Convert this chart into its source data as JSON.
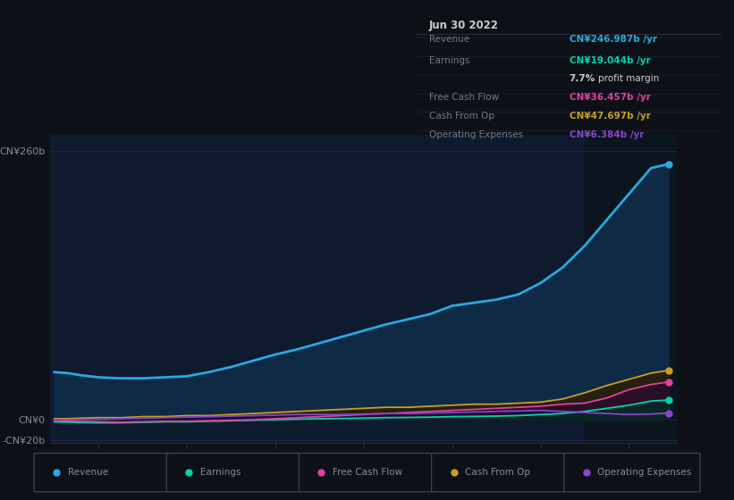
{
  "background_color": "#0d1117",
  "plot_bg_color": "#0e1a2e",
  "shaded_region_color": "#162236",
  "grid_color": "#1e2d45",
  "text_color": "#888899",
  "title_color": "#ffffff",
  "years": [
    2015.5,
    2015.65,
    2015.8,
    2016.0,
    2016.25,
    2016.5,
    2016.75,
    2017.0,
    2017.25,
    2017.5,
    2017.75,
    2018.0,
    2018.25,
    2018.5,
    2018.75,
    2019.0,
    2019.25,
    2019.5,
    2019.75,
    2020.0,
    2020.25,
    2020.5,
    2020.75,
    2021.0,
    2021.25,
    2021.5,
    2021.75,
    2022.0,
    2022.25,
    2022.45
  ],
  "revenue": [
    46,
    45,
    43,
    41,
    40,
    40,
    41,
    42,
    46,
    51,
    57,
    63,
    68,
    74,
    80,
    86,
    92,
    97,
    102,
    110,
    113,
    116,
    121,
    132,
    147,
    168,
    193,
    218,
    243,
    247
  ],
  "earnings": [
    -2,
    -2.3,
    -2.8,
    -3,
    -3,
    -2.5,
    -2,
    -2,
    -1.5,
    -1,
    -0.5,
    0,
    0.5,
    1,
    1.2,
    1.5,
    2,
    2.2,
    2.5,
    3,
    3.2,
    3.5,
    4,
    5,
    6,
    8,
    11,
    14,
    18,
    19
  ],
  "free_cash_flow": [
    -0.5,
    -1,
    -1.5,
    -2,
    -2.5,
    -2,
    -1.5,
    -1.5,
    -1,
    -0.5,
    0,
    1,
    2,
    3,
    4,
    5,
    6,
    7,
    8,
    9,
    10,
    11,
    12,
    13,
    15,
    16,
    21,
    29,
    34,
    36.5
  ],
  "cash_from_op": [
    1,
    1,
    1.5,
    2,
    2,
    3,
    3,
    4,
    4,
    5,
    6,
    7,
    8,
    9,
    10,
    11,
    12,
    12,
    13,
    14,
    15,
    15,
    16,
    17,
    20,
    26,
    33,
    39,
    45,
    47.7
  ],
  "operating_expenses": [
    0,
    0,
    0.3,
    0.5,
    1,
    1.5,
    2,
    2.5,
    3,
    3.5,
    4,
    4.5,
    5,
    5,
    5,
    5.5,
    6,
    6,
    6.5,
    7,
    7.5,
    8,
    8.5,
    9,
    8,
    7,
    6,
    5,
    5.5,
    6.4
  ],
  "revenue_color": "#29a8e0",
  "earnings_color": "#00d4aa",
  "free_cash_flow_color": "#e040a0",
  "cash_from_op_color": "#c8a020",
  "operating_expenses_color": "#8844cc",
  "revenue_fill": "#0e2a45",
  "earnings_fill": "#0a2525",
  "free_cash_flow_fill": "#2a0e25",
  "cash_from_op_fill": "#252010",
  "operating_expenses_fill": "#1a0e30",
  "ylim": [
    -22,
    275
  ],
  "xlim": [
    2015.45,
    2022.55
  ],
  "ytick_positions": [
    -20,
    0,
    260
  ],
  "ytick_labels": [
    "-CN¥20b",
    "CN¥0",
    "CN¥260b"
  ],
  "xticks": [
    2016,
    2017,
    2018,
    2019,
    2020,
    2021,
    2022
  ],
  "shade_start": 2021.5,
  "info_box": {
    "date": "Jun 30 2022",
    "revenue_label": "Revenue",
    "revenue_value": "CN¥246.987b /yr",
    "earnings_label": "Earnings",
    "earnings_value": "CN¥19.044b /yr",
    "margin_pct": "7.7%",
    "margin_text": "profit margin",
    "fcf_label": "Free Cash Flow",
    "fcf_value": "CN¥36.457b /yr",
    "cashop_label": "Cash From Op",
    "cashop_value": "CN¥47.697b /yr",
    "opex_label": "Operating Expenses",
    "opex_value": "CN¥6.384b /yr"
  },
  "legend_items": [
    {
      "label": "Revenue",
      "color": "#29a8e0"
    },
    {
      "label": "Earnings",
      "color": "#00d4aa"
    },
    {
      "label": "Free Cash Flow",
      "color": "#e040a0"
    },
    {
      "label": "Cash From Op",
      "color": "#c8a020"
    },
    {
      "label": "Operating Expenses",
      "color": "#8844cc"
    }
  ]
}
